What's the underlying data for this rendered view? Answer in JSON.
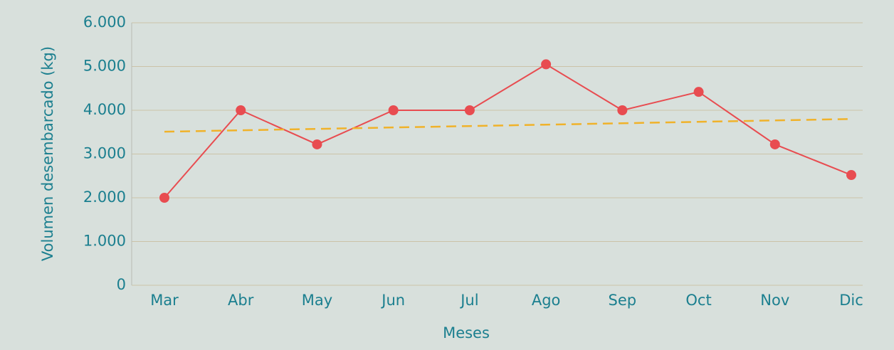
{
  "chart_data": {
    "type": "line",
    "xlabel": "Meses",
    "ylabel": "Volumen desembarcado (kg)",
    "categories": [
      "Mar",
      "Abr",
      "May",
      "Jun",
      "Jul",
      "Ago",
      "Sep",
      "Oct",
      "Nov",
      "Dic"
    ],
    "series": [
      {
        "color": "#e84c50",
        "style": "solid",
        "markers": true,
        "values": [
          2000,
          4000,
          3220,
          4000,
          4000,
          5050,
          4000,
          4420,
          3220,
          2520
        ]
      },
      {
        "color": "#f0b22a",
        "style": "dashed",
        "markers": false,
        "values": [
          3510,
          3542,
          3574,
          3607,
          3639,
          3671,
          3703,
          3736,
          3768,
          3800
        ]
      }
    ],
    "ylim": [
      0,
      6000
    ],
    "yticks": [
      0,
      {
        "value": 1000,
        "label": "1.000"
      },
      {
        "value": 2000,
        "label": "2.000"
      },
      {
        "value": 3000,
        "label": "3.000"
      },
      {
        "value": 4000,
        "label": "4.000"
      },
      {
        "value": 5000,
        "label": "5.000"
      },
      {
        "value": 6000,
        "label": "6.000"
      }
    ],
    "grid": true
  }
}
